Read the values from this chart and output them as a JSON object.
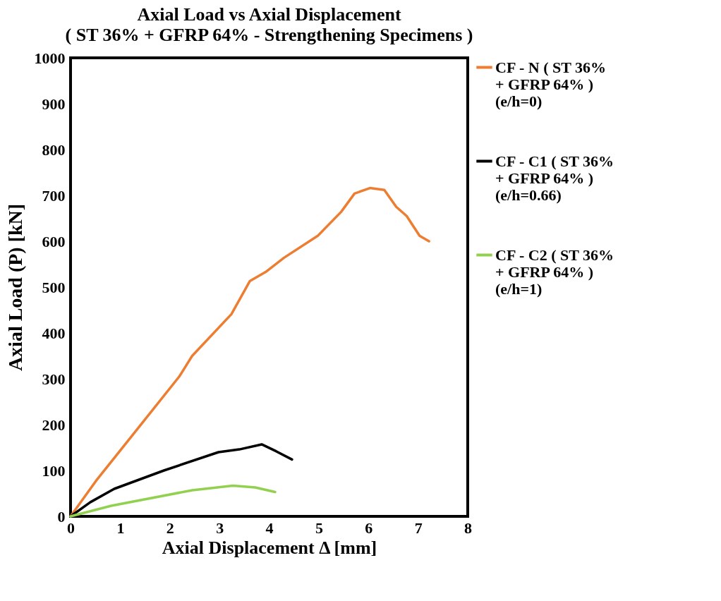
{
  "chart_data": {
    "type": "line",
    "title": "Axial Load vs Axial Displacement",
    "subtitle": "( ST 36% + GFRP 64% - Strengthening Specimens )",
    "xlabel": "Axial Displacement Δ  [mm]",
    "ylabel": "Axial  Load  (P)  [kN]",
    "xlim": [
      0,
      8
    ],
    "xticks": [
      0,
      1,
      2,
      3,
      4,
      5,
      6,
      7,
      8
    ],
    "ylim": [
      0,
      1000
    ],
    "yticks": [
      0,
      100,
      200,
      300,
      400,
      500,
      600,
      700,
      800,
      900,
      1000
    ],
    "grid": false,
    "legend": "right",
    "marker": "none",
    "line_style": "solid",
    "series": [
      {
        "name": "CF - N  ( ST 36% + GFRP 64% ) (e/h=0)",
        "color": "#ed7d31",
        "x": [
          0,
          0.51,
          1.35,
          2.19,
          2.45,
          3.24,
          3.61,
          3.93,
          4.3,
          4.98,
          5.45,
          5.72,
          6.03,
          6.32,
          6.56,
          6.77,
          7.03,
          7.22
        ],
        "values": [
          0,
          77,
          191,
          305,
          350,
          441,
          513,
          533,
          564,
          612,
          664,
          704,
          716,
          712,
          675,
          655,
          612,
          600
        ]
      },
      {
        "name": "CF - C1 ( ST 36% + GFRP 64% ) (e/h=0.66)",
        "color": "#000000",
        "x": [
          0,
          0.4,
          0.88,
          1.88,
          2.98,
          3.4,
          3.85,
          4.14,
          4.46
        ],
        "values": [
          0,
          31,
          60,
          100,
          140,
          146,
          157,
          142,
          124
        ]
      },
      {
        "name": "CF - C2 ( ST 36% + GFRP 64% ) (e/h=1)",
        "color": "#92d050",
        "x": [
          0,
          0.82,
          2.45,
          3.27,
          3.72,
          4.12
        ],
        "values": [
          0,
          23,
          57,
          67,
          63,
          53
        ]
      }
    ]
  }
}
